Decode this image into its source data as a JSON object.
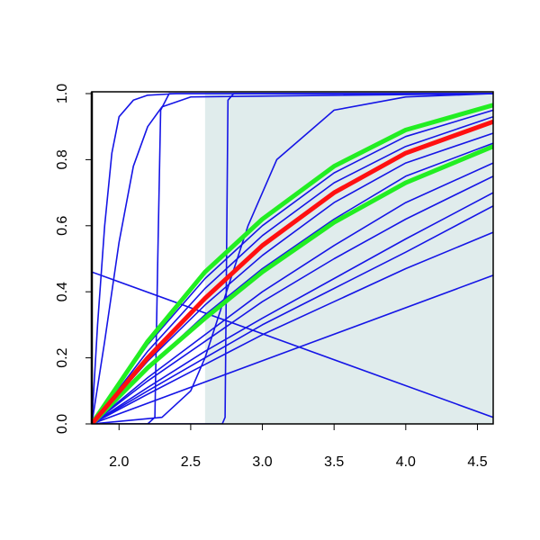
{
  "chart_data": {
    "type": "line",
    "x": [
      1.81,
      2.2,
      2.6,
      3.0,
      3.5,
      4.0,
      4.61
    ],
    "xlim": [
      1.81,
      4.61
    ],
    "ylim": [
      0,
      1
    ],
    "xticks": [
      {
        "value": 2,
        "label": "2.0"
      },
      2.5,
      {
        "value": 3,
        "label": "3.0"
      },
      3.5,
      {
        "value": 4,
        "label": "4.0"
      },
      4.5
    ],
    "yticks": [
      {
        "value": 0,
        "label": "0.0"
      },
      0.2,
      0.4,
      0.6,
      0.8,
      {
        "value": 1,
        "label": "1.0"
      }
    ],
    "shade_from": 2.6,
    "shade_color": "#e0ecec",
    "series": [
      {
        "color": "#1515e6",
        "values": [
          0,
          0.24,
          0.44,
          0.6,
          0.76,
          0.87,
          0.95
        ]
      },
      {
        "color": "#1515e6",
        "values": [
          0,
          0.22,
          0.41,
          0.57,
          0.73,
          0.84,
          0.93
        ]
      },
      {
        "color": "#1515e6",
        "values": [
          0,
          0.19,
          0.36,
          0.51,
          0.67,
          0.79,
          0.88
        ]
      },
      {
        "color": "#1515e6",
        "values": [
          0,
          0.17,
          0.33,
          0.47,
          0.62,
          0.75,
          0.85
        ]
      },
      {
        "color": "#1515e6",
        "values": [
          0,
          0.14,
          0.27,
          0.4,
          0.54,
          0.67,
          0.79
        ]
      },
      {
        "color": "#1515e6",
        "values": [
          0,
          0.13,
          0.25,
          0.37,
          0.5,
          0.62,
          0.75
        ]
      },
      {
        "color": "#1515e6",
        "values": [
          0,
          0.11,
          0.22,
          0.32,
          0.44,
          0.56,
          0.7
        ]
      },
      {
        "color": "#1515e6",
        "values": [
          0,
          0.1,
          0.2,
          0.3,
          0.41,
          0.52,
          0.66
        ]
      },
      {
        "color": "#1515e6",
        "values": [
          0,
          0.09,
          0.18,
          0.27,
          0.37,
          0.47,
          0.58
        ]
      },
      {
        "color": "#1515e6",
        "x": [
          1.81,
          4.61
        ],
        "values": [
          0,
          0.45
        ]
      },
      {
        "color": "#1515e6",
        "x": [
          1.81,
          4.61
        ],
        "values": [
          0.46,
          0.02
        ]
      },
      {
        "color": "#1515e6",
        "x": [
          1.81,
          1.85,
          1.9,
          1.95,
          2.0,
          2.1,
          2.2,
          2.4,
          4.61
        ],
        "values": [
          0,
          0.3,
          0.6,
          0.82,
          0.93,
          0.98,
          0.995,
          1,
          1
        ]
      },
      {
        "color": "#1515e6",
        "x": [
          1.81,
          1.9,
          2.0,
          2.1,
          2.2,
          2.3,
          2.5,
          4.61
        ],
        "values": [
          0,
          0.25,
          0.55,
          0.78,
          0.9,
          0.96,
          0.99,
          1
        ]
      },
      {
        "color": "#1515e6",
        "x": [
          1.81,
          2.2,
          2.25,
          2.27,
          2.29,
          2.35,
          4.61
        ],
        "values": [
          0,
          0,
          0.02,
          0.5,
          0.95,
          1,
          1
        ]
      },
      {
        "color": "#1515e6",
        "x": [
          1.81,
          2.72,
          2.74,
          2.75,
          2.76,
          2.8,
          4.61
        ],
        "values": [
          0,
          0,
          0.02,
          0.5,
          0.98,
          1,
          1
        ]
      },
      {
        "color": "#1515e6",
        "x": [
          1.81,
          2.3,
          2.5,
          2.6,
          2.75,
          2.9,
          3.1,
          3.5,
          4.0,
          4.61
        ],
        "values": [
          0,
          0.02,
          0.1,
          0.2,
          0.4,
          0.6,
          0.8,
          0.95,
          0.99,
          1
        ]
      },
      {
        "color": "#22ee22",
        "line_width": 5,
        "values": [
          0,
          0.25,
          0.46,
          0.62,
          0.78,
          0.89,
          0.965
        ]
      },
      {
        "color": "#22ee22",
        "line_width": 5,
        "values": [
          0,
          0.17,
          0.32,
          0.46,
          0.61,
          0.73,
          0.84
        ]
      },
      {
        "color": "#ff1010",
        "line_width": 5,
        "values": [
          0,
          0.2,
          0.38,
          0.54,
          0.7,
          0.82,
          0.915
        ]
      }
    ]
  }
}
